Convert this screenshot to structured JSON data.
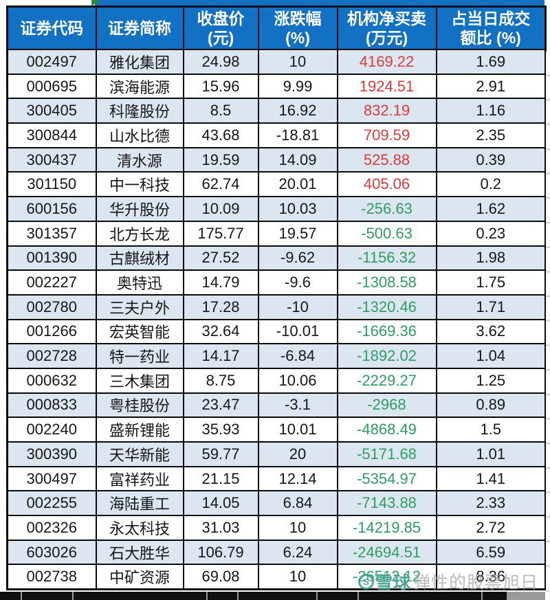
{
  "chart_data": {
    "type": "table",
    "columns": [
      {
        "l1": "证券代码",
        "l2": ""
      },
      {
        "l1": "证券简称",
        "l2": ""
      },
      {
        "l1": "收盘价",
        "l2": "(元)"
      },
      {
        "l1": "涨跌幅",
        "l2": "(%)"
      },
      {
        "l1": "机构净买卖",
        "l2": "(万元)"
      },
      {
        "l1": "占当日成交",
        "l2": "额比 (%)"
      }
    ],
    "rows": [
      [
        "002497",
        "雅化集团",
        "24.98",
        "10",
        "4169.22",
        "1.69"
      ],
      [
        "000695",
        "滨海能源",
        "15.96",
        "9.99",
        "1924.51",
        "2.91"
      ],
      [
        "300405",
        "科隆股份",
        "8.5",
        "16.92",
        "832.19",
        "1.16"
      ],
      [
        "300844",
        "山水比德",
        "43.68",
        "-18.81",
        "709.59",
        "2.35"
      ],
      [
        "300437",
        "清水源",
        "19.59",
        "14.09",
        "525.88",
        "0.39"
      ],
      [
        "301150",
        "中一科技",
        "62.74",
        "20.01",
        "405.06",
        "0.2"
      ],
      [
        "600156",
        "华升股份",
        "10.09",
        "10.03",
        "-256.63",
        "1.62"
      ],
      [
        "301357",
        "北方长龙",
        "175.77",
        "19.57",
        "-500.63",
        "0.23"
      ],
      [
        "001390",
        "古麒绒材",
        "27.52",
        "-9.62",
        "-1156.32",
        "1.98"
      ],
      [
        "002227",
        "奥特迅",
        "14.79",
        "-9.6",
        "-1308.58",
        "1.75"
      ],
      [
        "002780",
        "三夫户外",
        "17.28",
        "-10",
        "-1320.46",
        "1.71"
      ],
      [
        "001266",
        "宏英智能",
        "32.64",
        "-10.01",
        "-1669.36",
        "3.62"
      ],
      [
        "002728",
        "特一药业",
        "14.17",
        "-6.84",
        "-1892.02",
        "1.04"
      ],
      [
        "000632",
        "三木集团",
        "8.75",
        "10.06",
        "-2229.27",
        "1.25"
      ],
      [
        "000833",
        "粤桂股份",
        "23.47",
        "-3.1",
        "-2968",
        "0.89"
      ],
      [
        "002240",
        "盛新锂能",
        "35.93",
        "10.01",
        "-4868.49",
        "1.5"
      ],
      [
        "300390",
        "天华新能",
        "59.77",
        "20",
        "-5171.68",
        "1.01"
      ],
      [
        "300497",
        "富祥药业",
        "21.15",
        "12.14",
        "-5354.97",
        "1.41"
      ],
      [
        "002255",
        "海陆重工",
        "14.05",
        "6.84",
        "-7143.88",
        "2.33"
      ],
      [
        "002326",
        "永太科技",
        "31.03",
        "10",
        "-14219.85",
        "2.72"
      ],
      [
        "603026",
        "石大胜华",
        "106.79",
        "6.24",
        "-24694.51",
        "6.59"
      ],
      [
        "002738",
        "中矿资源",
        "69.08",
        "10",
        "-26512.12",
        "8.36"
      ]
    ]
  },
  "watermark": {
    "logo_letter": "S",
    "brand": "雪球",
    "user": "弹性的股票旭日"
  },
  "colors": {
    "header_bg": "#1371c3",
    "row_alt": "#dce6f1",
    "positive": "#e03a3a",
    "negative": "#2d9e5e"
  }
}
